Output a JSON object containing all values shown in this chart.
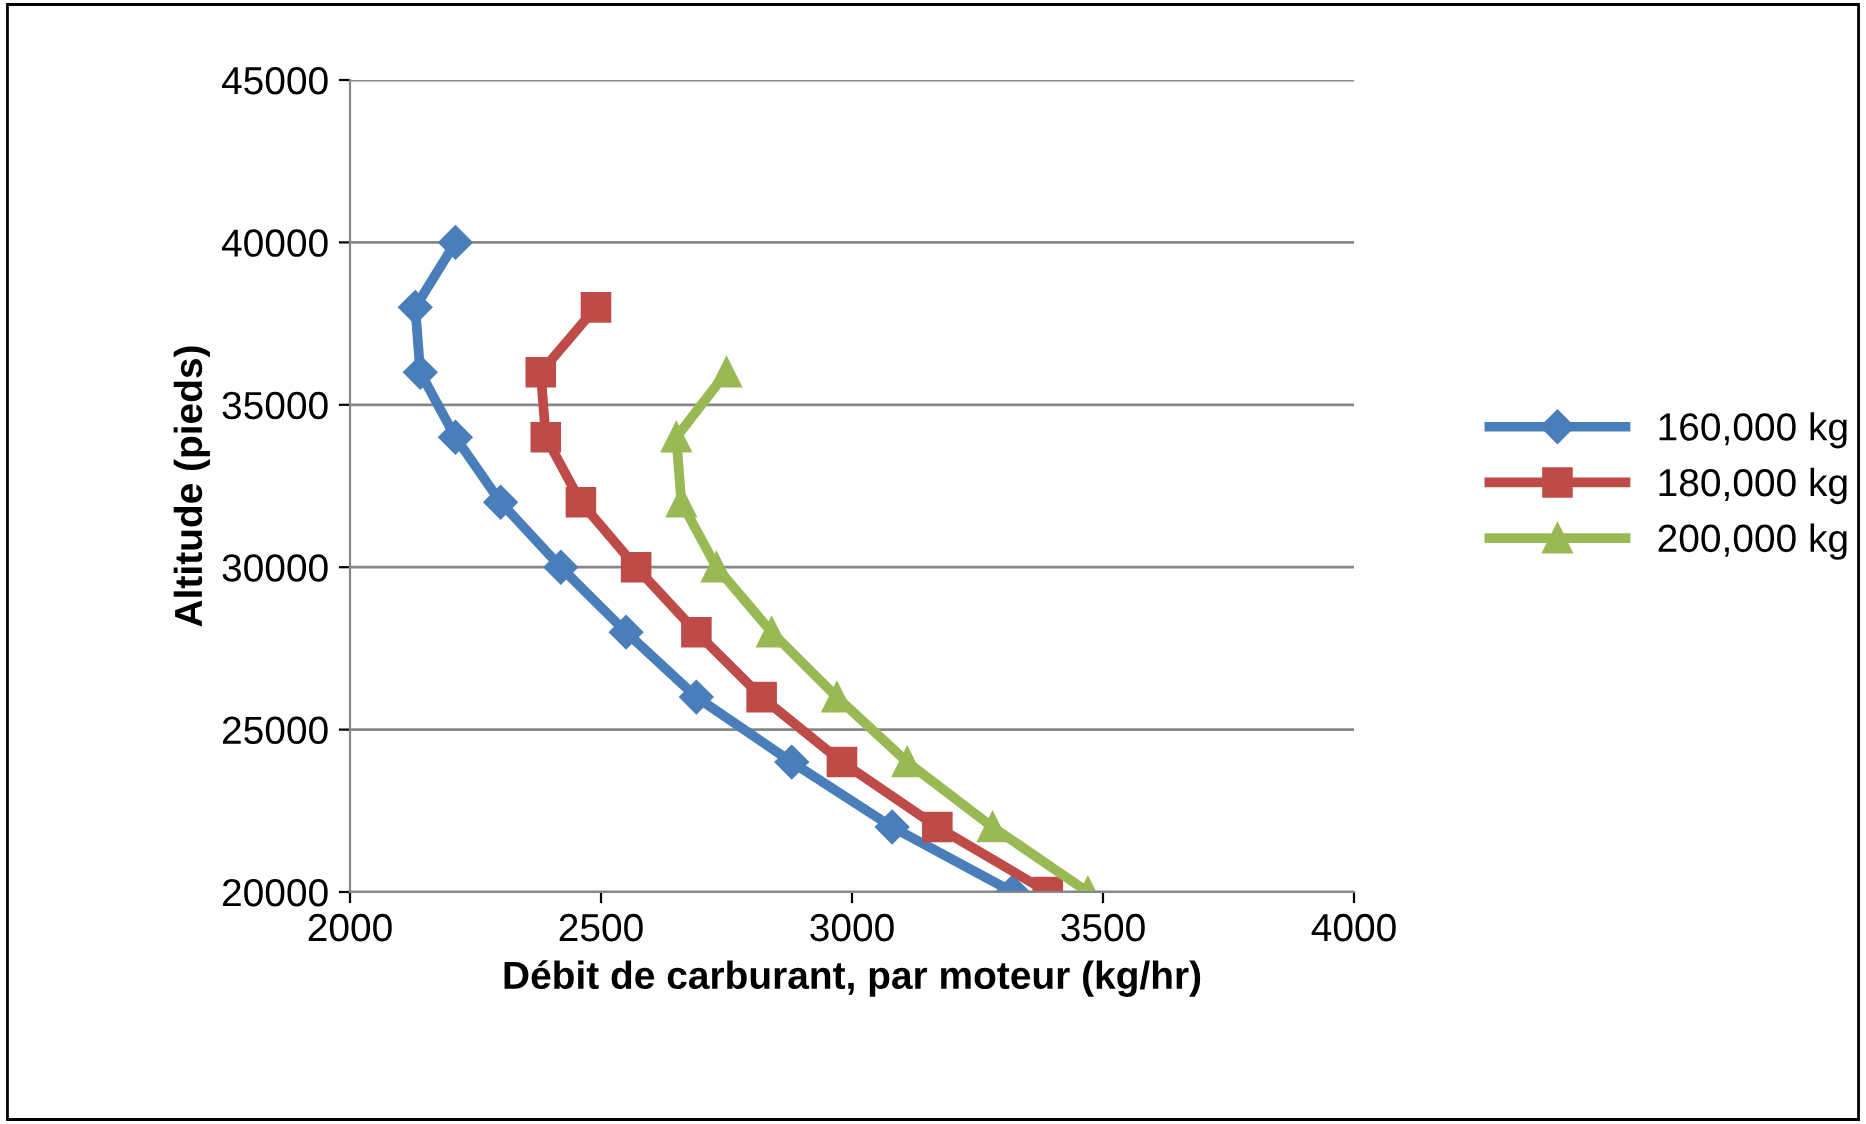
{
  "chart_data": {
    "type": "line",
    "xlabel": "Débit de carburant, par moteur (kg/hr)",
    "ylabel": "Altitude (pieds)",
    "xlim": [
      2000,
      4000
    ],
    "xticks": [
      2000,
      2500,
      3000,
      3500,
      4000
    ],
    "ylim": [
      20000,
      45000
    ],
    "yticks": [
      20000,
      25000,
      30000,
      35000,
      40000,
      45000
    ],
    "grid": "y",
    "legend": "right",
    "series": [
      {
        "name": "160,000 kg",
        "color": "#4a7ebb",
        "marker": "diamond",
        "x": [
          3320,
          3080,
          2880,
          2690,
          2550,
          2420,
          2300,
          2210,
          2140,
          2130,
          2210
        ],
        "values": [
          20000,
          22000,
          24000,
          26000,
          28000,
          30000,
          32000,
          34000,
          36000,
          38000,
          40000
        ]
      },
      {
        "name": "180,000 kg",
        "color": "#be4b48",
        "marker": "square",
        "x": [
          3390,
          3170,
          2980,
          2820,
          2690,
          2570,
          2460,
          2390,
          2380,
          2490
        ],
        "values": [
          20000,
          22000,
          24000,
          26000,
          28000,
          30000,
          32000,
          34000,
          36000,
          38000
        ]
      },
      {
        "name": "200,000 kg",
        "color": "#98b954",
        "marker": "triangle",
        "x": [
          3470,
          3280,
          3110,
          2970,
          2840,
          2730,
          2660,
          2650,
          2750
        ],
        "values": [
          20000,
          22000,
          24000,
          26000,
          28000,
          30000,
          32000,
          34000,
          36000
        ]
      }
    ]
  }
}
